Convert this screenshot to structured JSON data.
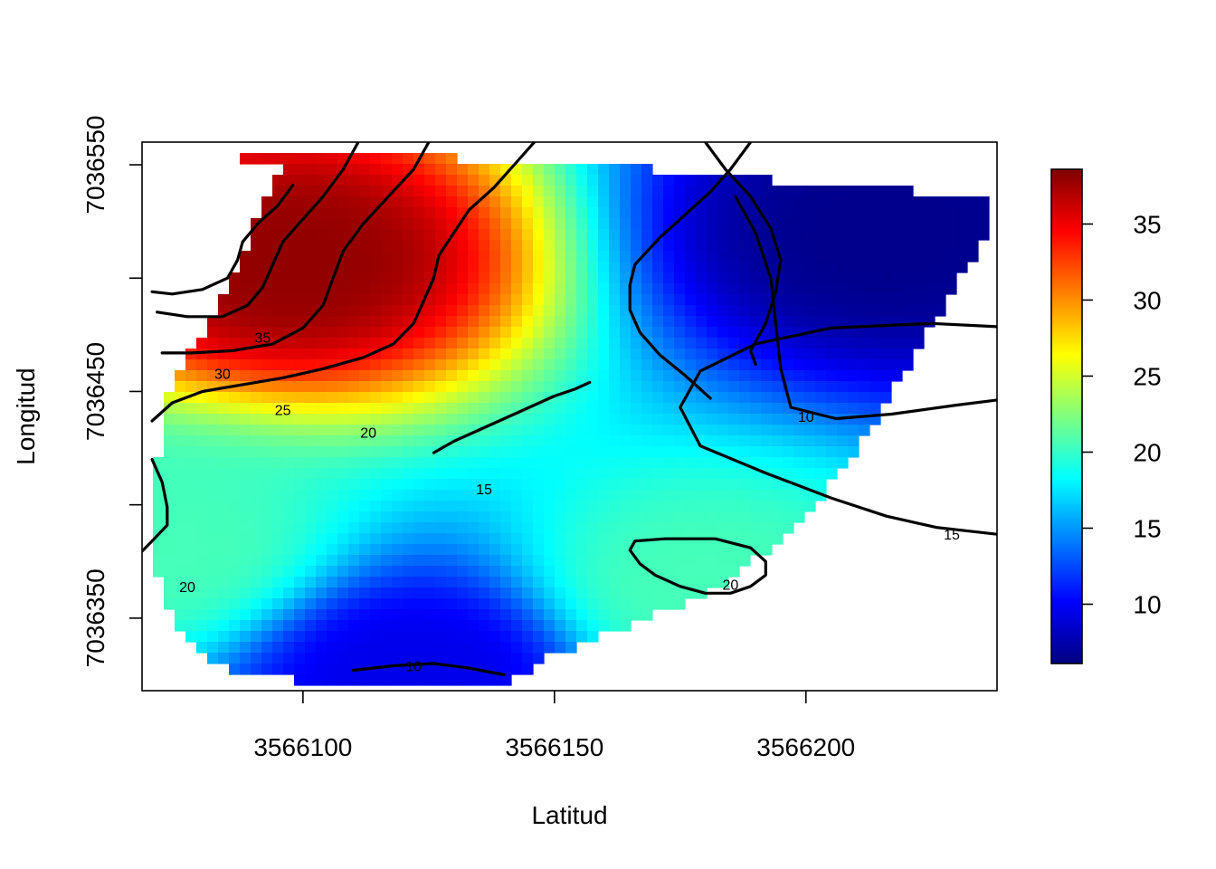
{
  "chart_data": {
    "type": "heatmap",
    "subtype": "interpolated surface with contour lines",
    "title": "",
    "xlabel": "Latitud",
    "ylabel": "Longitud",
    "xlim": [
      3566068,
      3566238
    ],
    "ylim": [
      7036318,
      7036560
    ],
    "x_ticks": [
      3566100,
      3566150,
      3566200
    ],
    "y_ticks": [
      7036350,
      7036400,
      7036450,
      7036500,
      7036550
    ],
    "y_tick_labels": [
      "7036350",
      "",
      "7036450",
      "",
      "7036550"
    ],
    "colorbar": {
      "range": [
        6.1,
        38.6
      ],
      "ticks": [
        10,
        15,
        20,
        25,
        30,
        35
      ],
      "palette": [
        "#00007F",
        "#0000FF",
        "#007FFF",
        "#00FFFF",
        "#7FFF7F",
        "#FFFF00",
        "#FF7F00",
        "#FF0000",
        "#7F0000"
      ],
      "placement": "right"
    },
    "grid": false,
    "legend": "none",
    "peaks": [
      {
        "x": 3566098,
        "y": 7036508,
        "value": 38
      },
      {
        "x": 3566180,
        "y": 7036364,
        "value": 20.5
      },
      {
        "x": 3566072,
        "y": 7036380,
        "value": 20.5
      }
    ],
    "troughs": [
      {
        "x": 3566215,
        "y": 7036520,
        "value": 6.5
      },
      {
        "x": 3566122,
        "y": 7036325,
        "value": 9.5
      }
    ],
    "contours": [
      {
        "level": 10,
        "label": "10",
        "segments": [
          [
            [
              3566186,
              7036536
            ],
            [
              3566190,
              7036520
            ],
            [
              3566193,
              7036500
            ],
            [
              3566194,
              7036480
            ],
            [
              3566195,
              7036460
            ],
            [
              3566197,
              7036443
            ],
            [
              3566206,
              7036438
            ],
            [
              3566217,
              7036440
            ],
            [
              3566230,
              7036444
            ],
            [
              3566248,
              7036449
            ],
            [
              3566265,
              7036454
            ],
            [
              3566284,
              7036458
            ]
          ],
          [
            [
              3566110,
              7036327
            ],
            [
              3566118,
              7036329
            ],
            [
              3566126,
              7036330
            ],
            [
              3566133,
              7036328
            ],
            [
              3566140,
              7036325
            ]
          ]
        ]
      },
      {
        "level": 15,
        "label": "15",
        "segments": [
          [
            [
              3566180,
              7036560
            ],
            [
              3566184,
              7036548
            ],
            [
              3566189,
              7036536
            ],
            [
              3566193,
              7036522
            ],
            [
              3566195,
              7036508
            ],
            [
              3566194,
              7036494
            ],
            [
              3566192,
              7036480
            ],
            [
              3566189,
              7036468
            ],
            [
              3566190,
              7036462
            ]
          ],
          [
            [
              3566254,
              7036473
            ],
            [
              3566243,
              7036478
            ],
            [
              3566225,
              7036480
            ],
            [
              3566205,
              7036478
            ],
            [
              3566190,
              7036471
            ],
            [
              3566179,
              7036459
            ],
            [
              3566175,
              7036443
            ],
            [
              3566179,
              7036426
            ],
            [
              3566192,
              7036414
            ],
            [
              3566205,
              7036403
            ],
            [
              3566216,
              7036395
            ],
            [
              3566226,
              7036390
            ],
            [
              3566238,
              7036387
            ]
          ],
          [
            [
              3566189,
              7036560
            ],
            [
              3566185,
              7036548
            ],
            [
              3566181,
              7036538
            ],
            [
              3566176,
              7036528
            ],
            [
              3566171,
              7036518
            ],
            [
              3566166,
              7036506
            ],
            [
              3566165,
              7036497
            ],
            [
              3566165,
              7036486
            ],
            [
              3566167,
              7036476
            ],
            [
              3566171,
              7036466
            ],
            [
              3566176,
              7036457
            ],
            [
              3566181,
              7036447
            ]
          ]
        ]
      },
      {
        "level": 15,
        "label": "15",
        "segments": [
          [
            [
              3566157,
              7036454
            ],
            [
              3566154,
              7036451
            ],
            [
              3566150,
              7036448
            ],
            [
              3566146,
              7036444
            ],
            [
              3566142,
              7036440
            ],
            [
              3566138,
              7036436
            ],
            [
              3566134,
              7036432
            ],
            [
              3566130,
              7036428
            ],
            [
              3566126,
              7036423
            ]
          ]
        ]
      },
      {
        "level": 20,
        "label": "20",
        "segments": [
          [
            [
              3566146,
              7036560
            ],
            [
              3566142,
              7036550
            ],
            [
              3566138,
              7036540
            ],
            [
              3566133,
              7036530
            ],
            [
              3566130,
              7036520
            ],
            [
              3566127,
              7036510
            ],
            [
              3566126,
              7036500
            ],
            [
              3566124,
              7036490
            ],
            [
              3566122,
              7036480
            ],
            [
              3566118,
              7036471
            ],
            [
              3566112,
              7036465
            ],
            [
              3566104,
              7036460
            ],
            [
              3566096,
              7036456
            ],
            [
              3566088,
              7036453
            ],
            [
              3566080,
              7036450
            ],
            [
              3566074,
              7036445
            ],
            [
              3566070,
              7036437
            ]
          ],
          [
            [
              3566070,
              7036420
            ],
            [
              3566072,
              7036410
            ],
            [
              3566073,
              7036399
            ],
            [
              3566073,
              7036391
            ],
            [
              3566070,
              7036384
            ],
            [
              3566066,
              7036375
            ],
            [
              3566064,
              7036364
            ]
          ]
        ]
      },
      {
        "level": 20,
        "label": "20",
        "segments": [
          [
            [
              3566180,
              7036361
            ],
            [
              3566175,
              7036364
            ],
            [
              3566170,
              7036369
            ],
            [
              3566167,
              7036374
            ],
            [
              3566165,
              7036380
            ],
            [
              3566166,
              7036384
            ],
            [
              3566172,
              7036385
            ],
            [
              3566182,
              7036385
            ],
            [
              3566189,
              7036381
            ],
            [
              3566192,
              7036375
            ],
            [
              3566192,
              7036369
            ],
            [
              3566189,
              7036364
            ],
            [
              3566185,
              7036361
            ],
            [
              3566180,
              7036361
            ]
          ]
        ]
      },
      {
        "level": 25,
        "label": "25",
        "segments": [
          [
            [
              3566125,
              7036560
            ],
            [
              3566122,
              7036548
            ],
            [
              3566117,
              7036536
            ],
            [
              3566112,
              7036524
            ],
            [
              3566108,
              7036512
            ],
            [
              3566106,
              7036500
            ],
            [
              3566104,
              7036488
            ],
            [
              3566100,
              7036478
            ],
            [
              3566094,
              7036471
            ],
            [
              3566086,
              7036468
            ],
            [
              3566078,
              7036467
            ],
            [
              3566072,
              7036467
            ]
          ]
        ]
      },
      {
        "level": 30,
        "label": "30",
        "segments": [
          [
            [
              3566111,
              7036560
            ],
            [
              3566108,
              7036548
            ],
            [
              3566104,
              7036536
            ],
            [
              3566100,
              7036526
            ],
            [
              3566096,
              7036516
            ],
            [
              3566094,
              7036506
            ],
            [
              3566092,
              7036496
            ],
            [
              3566089,
              7036488
            ],
            [
              3566084,
              7036483
            ],
            [
              3566077,
              7036483
            ],
            [
              3566071,
              7036485
            ]
          ]
        ]
      },
      {
        "level": 35,
        "label": "35",
        "segments": [
          [
            [
              3566098,
              7036541
            ],
            [
              3566095,
              7036532
            ],
            [
              3566091,
              7036524
            ],
            [
              3566088,
              7036516
            ],
            [
              3566087,
              7036508
            ],
            [
              3566085,
              7036500
            ],
            [
              3566080,
              7036495
            ],
            [
              3566074,
              7036493
            ],
            [
              3566070,
              7036494
            ]
          ]
        ]
      }
    ],
    "contour_labels": [
      {
        "text": "35",
        "x": 3566092,
        "y": 7036474
      },
      {
        "text": "30",
        "x": 3566084,
        "y": 7036458
      },
      {
        "text": "25",
        "x": 3566096,
        "y": 7036442
      },
      {
        "text": "20",
        "x": 3566113,
        "y": 7036432
      },
      {
        "text": "15",
        "x": 3566136,
        "y": 7036407
      },
      {
        "text": "10",
        "x": 3566200,
        "y": 7036439
      },
      {
        "text": "15",
        "x": 3566229,
        "y": 7036387
      },
      {
        "text": "20",
        "x": 3566185,
        "y": 7036365
      },
      {
        "text": "20",
        "x": 3566077,
        "y": 7036364
      },
      {
        "text": "10",
        "x": 3566122,
        "y": 7036329
      }
    ]
  }
}
